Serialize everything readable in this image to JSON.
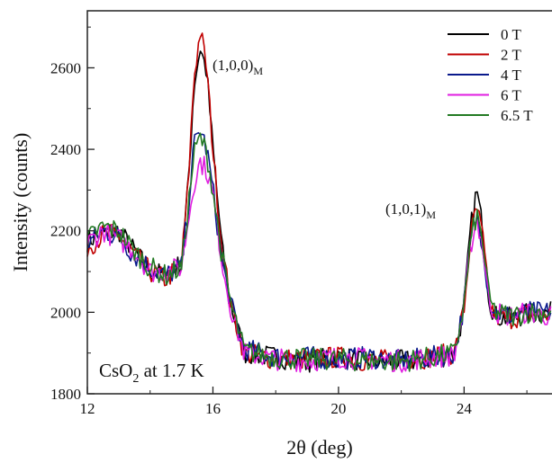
{
  "chart_data": {
    "type": "line",
    "xlabel": "2θ (deg)",
    "ylabel": "Intensity (counts)",
    "xlim": [
      12,
      26.8
    ],
    "ylim": [
      1800,
      2740
    ],
    "x_ticks": [
      12,
      16,
      20,
      24
    ],
    "y_ticks": [
      1800,
      2000,
      2200,
      2400,
      2600
    ],
    "x_tick_labels": [
      "12",
      "16",
      "20",
      "24"
    ],
    "y_tick_labels": [
      "1800",
      "2000",
      "2200",
      "2400",
      "2600"
    ],
    "legend_position": "top-right",
    "grid": false,
    "x": [
      12.0,
      12.5,
      13.0,
      13.5,
      14.0,
      14.5,
      15.0,
      15.2,
      15.4,
      15.6,
      15.8,
      16.0,
      16.3,
      16.6,
      17.0,
      18.0,
      19.0,
      20.0,
      21.0,
      22.0,
      23.0,
      23.7,
      24.0,
      24.2,
      24.4,
      24.6,
      24.8,
      25.0,
      25.5,
      26.0,
      26.8
    ],
    "series": [
      {
        "name": "0 T",
        "color": "#000000",
        "values": [
          2175,
          2195,
          2200,
          2150,
          2100,
          2090,
          2120,
          2300,
          2560,
          2650,
          2590,
          2400,
          2150,
          2010,
          1900,
          1890,
          1880,
          1890,
          1880,
          1880,
          1885,
          1900,
          2010,
          2200,
          2300,
          2200,
          2030,
          1990,
          1985,
          1995,
          2000
        ]
      },
      {
        "name": "2 T",
        "color": "#c00000",
        "values": [
          2160,
          2190,
          2190,
          2140,
          2100,
          2080,
          2120,
          2300,
          2580,
          2690,
          2600,
          2400,
          2150,
          2010,
          1900,
          1885,
          1885,
          1890,
          1880,
          1885,
          1890,
          1900,
          2010,
          2180,
          2260,
          2180,
          2020,
          1990,
          1985,
          1995,
          1995
        ]
      },
      {
        "name": "4 T",
        "color": "#0a1a8c",
        "values": [
          2170,
          2200,
          2185,
          2140,
          2110,
          2090,
          2110,
          2250,
          2410,
          2450,
          2400,
          2300,
          2120,
          2010,
          1910,
          1890,
          1890,
          1885,
          1890,
          1880,
          1890,
          1900,
          2020,
          2170,
          2240,
          2170,
          2030,
          2000,
          1990,
          2000,
          2000
        ]
      },
      {
        "name": "6 T",
        "color": "#e01de0",
        "values": [
          2170,
          2200,
          2180,
          2150,
          2100,
          2100,
          2110,
          2220,
          2320,
          2370,
          2350,
          2290,
          2120,
          2000,
          1900,
          1885,
          1880,
          1890,
          1885,
          1880,
          1890,
          1895,
          2010,
          2160,
          2230,
          2160,
          2020,
          2000,
          1990,
          2000,
          1990
        ]
      },
      {
        "name": "6.5 T",
        "color": "#237a23",
        "values": [
          2180,
          2210,
          2200,
          2150,
          2110,
          2090,
          2110,
          2250,
          2390,
          2430,
          2390,
          2300,
          2130,
          2010,
          1905,
          1890,
          1885,
          1885,
          1880,
          1880,
          1890,
          1900,
          2020,
          2170,
          2240,
          2170,
          2030,
          2000,
          1990,
          2000,
          2000
        ]
      }
    ],
    "annotations": [
      {
        "main": "(1,0,0)",
        "sub": "M"
      },
      {
        "main": "(1,0,1)",
        "sub": "M"
      }
    ],
    "inset_label": {
      "main": "CsO",
      "sub": "2",
      "rest": " at 1.7 K"
    }
  }
}
